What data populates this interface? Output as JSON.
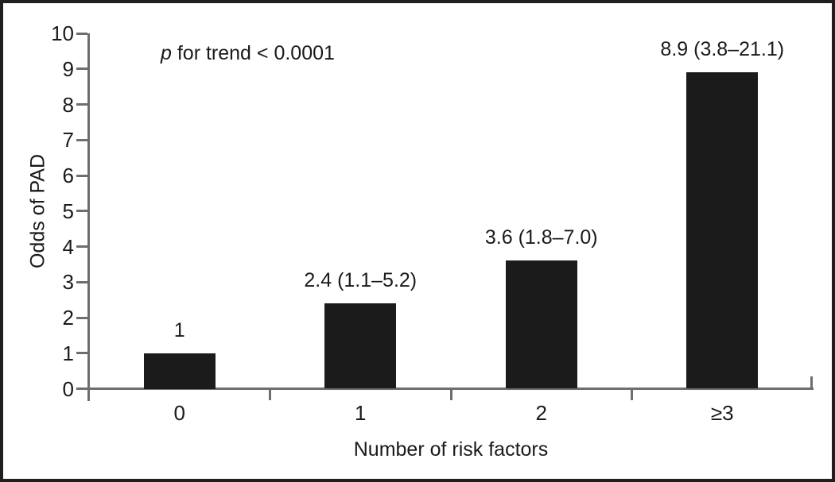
{
  "chart_data": {
    "type": "bar",
    "title": "",
    "xlabel": "Number of risk factors",
    "ylabel": "Odds of PAD",
    "categories": [
      "0",
      "1",
      "2",
      "≥3"
    ],
    "values": [
      1,
      2.4,
      3.6,
      8.9
    ],
    "bar_labels": [
      "1",
      "2.4 (1.1–5.2)",
      "3.6 (1.8–7.0)",
      "8.9 (3.8–21.1)"
    ],
    "ylim": [
      0,
      10
    ],
    "yticks": [
      0,
      1,
      2,
      3,
      4,
      5,
      6,
      7,
      8,
      9,
      10
    ],
    "annotation": {
      "italic": "p",
      "text": " for trend < 0.0001"
    },
    "grid": false,
    "legend": "none",
    "colors": {
      "bar": "#1b1b1b",
      "axis": "#6e6e6e",
      "text": "#1a1a1a",
      "frame": "#1f1f1f",
      "background": "#ffffff"
    }
  }
}
